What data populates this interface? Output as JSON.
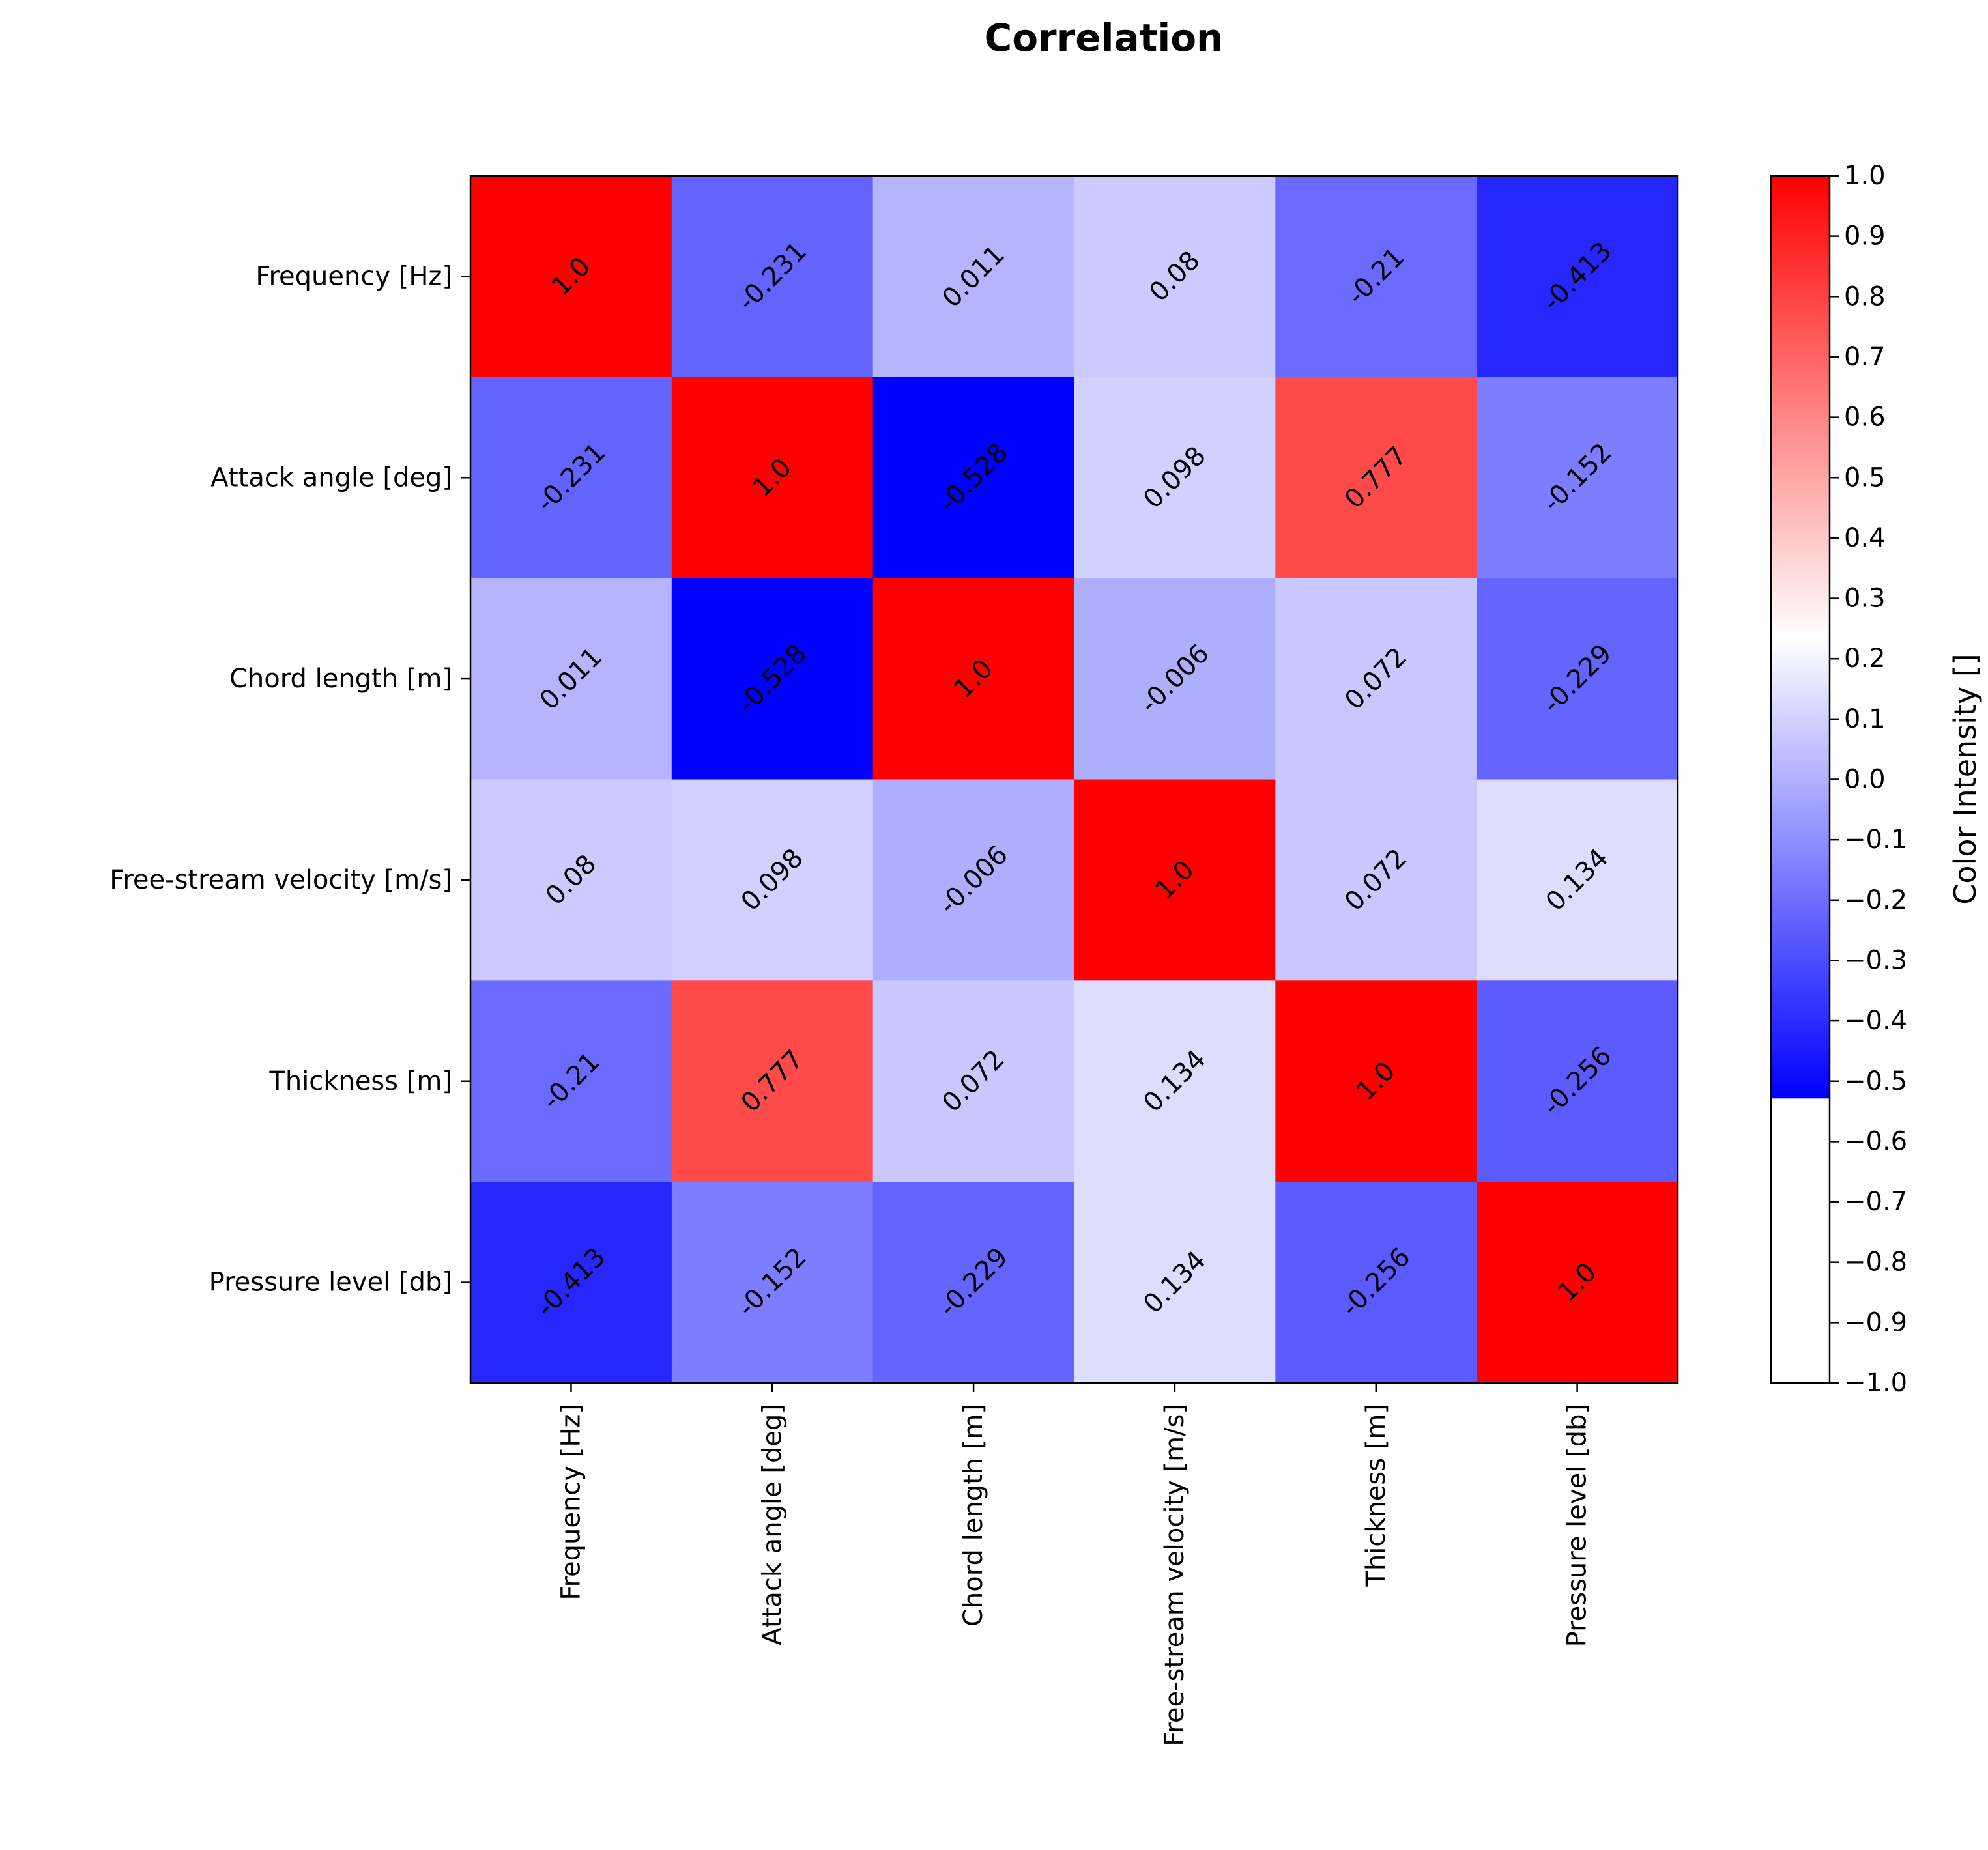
{
  "chart_data": {
    "type": "heatmap",
    "title": "Correlation",
    "row_labels": [
      "Frequency [Hz]",
      "Attack angle [deg]",
      "Chord length [m]",
      "Free-stream velocity [m/s]",
      "Thickness [m]",
      "Pressure level [db]"
    ],
    "col_labels": [
      "Frequency [Hz]",
      "Attack angle [deg]",
      "Chord length [m]",
      "Free-stream velocity [m/s]",
      "Thickness [m]",
      "Pressure level [db]"
    ],
    "values": [
      [
        1.0,
        -0.231,
        0.011,
        0.08,
        -0.21,
        -0.413
      ],
      [
        -0.231,
        1.0,
        -0.528,
        0.098,
        0.777,
        -0.152
      ],
      [
        0.011,
        -0.528,
        1.0,
        -0.006,
        0.072,
        -0.229
      ],
      [
        0.08,
        0.098,
        -0.006,
        1.0,
        0.072,
        0.134
      ],
      [
        -0.21,
        0.777,
        0.072,
        0.134,
        1.0,
        -0.256
      ],
      [
        -0.413,
        -0.152,
        -0.229,
        0.134,
        -0.256,
        1.0
      ]
    ],
    "value_labels": [
      [
        "1.0",
        "-0.231",
        "0.011",
        "0.08",
        "-0.21",
        "-0.413"
      ],
      [
        "-0.231",
        "1.0",
        "-0.528",
        "0.098",
        "0.777",
        "-0.152"
      ],
      [
        "0.011",
        "-0.528",
        "1.0",
        "-0.006",
        "0.072",
        "-0.229"
      ],
      [
        "0.08",
        "0.098",
        "-0.006",
        "1.0",
        "0.072",
        "0.134"
      ],
      [
        "-0.21",
        "0.777",
        "0.072",
        "0.134",
        "1.0",
        "-0.256"
      ],
      [
        "-0.413",
        "-0.152",
        "-0.229",
        "0.134",
        "-0.256",
        "1.0"
      ]
    ],
    "colormap": {
      "low": "#0000ff",
      "mid": "#ffffff",
      "high": "#ff0000"
    },
    "vmin": -0.528,
    "vmax": 1.0,
    "colorbar": {
      "label": "Color Intensity []",
      "range": [
        -1.0,
        1.0
      ],
      "ticks": [
        "1.0",
        "0.9",
        "0.8",
        "0.7",
        "0.6",
        "0.5",
        "0.4",
        "0.3",
        "0.2",
        "0.1",
        "0.0",
        "−0.1",
        "−0.2",
        "−0.3",
        "−0.4",
        "−0.5",
        "−0.6",
        "−0.7",
        "−0.8",
        "−0.9",
        "−1.0"
      ],
      "tick_values": [
        1.0,
        0.9,
        0.8,
        0.7,
        0.6,
        0.5,
        0.4,
        0.3,
        0.2,
        0.1,
        0.0,
        -0.1,
        -0.2,
        -0.3,
        -0.4,
        -0.5,
        -0.6,
        -0.7,
        -0.8,
        -0.9,
        -1.0
      ]
    },
    "cell_label_rotation": "45 degrees",
    "grid": false
  }
}
